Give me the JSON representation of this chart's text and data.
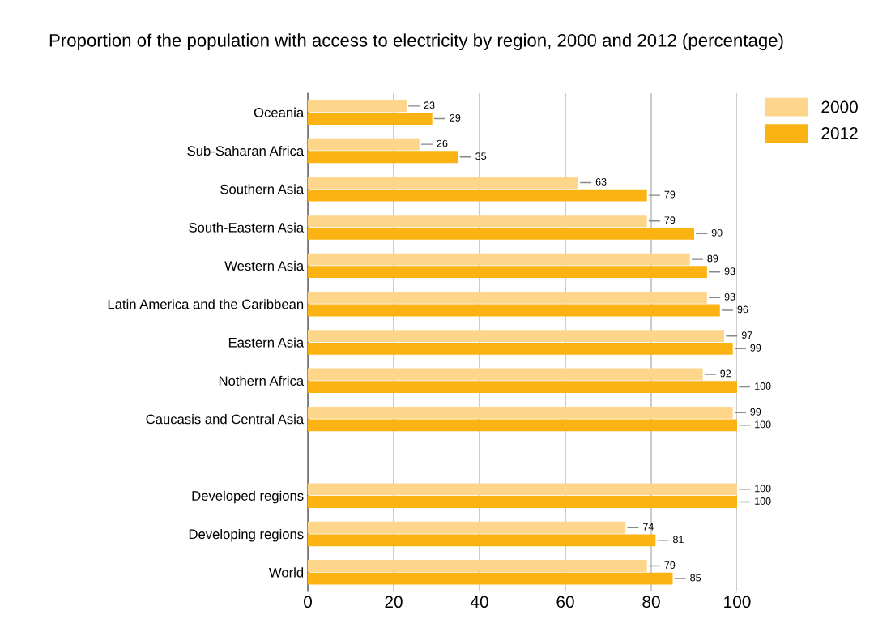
{
  "chart_data": {
    "type": "bar",
    "orientation": "horizontal",
    "title": "Proportion of the population with access to electricity by region, 2000 and 2012 (percentage)",
    "categories": [
      "Oceania",
      "Sub-Saharan Africa",
      "Southern Asia",
      "South-Eastern Asia",
      "Western Asia",
      "Latin America and the Caribbean",
      "Eastern Asia",
      "Nothern Africa",
      "Caucasis and Central Asia",
      null,
      "Developed regions",
      "Developing regions",
      "World"
    ],
    "series": [
      {
        "name": "2000",
        "color": "#fdd68c",
        "values": [
          23,
          26,
          63,
          79,
          89,
          93,
          97,
          92,
          99,
          null,
          100,
          74,
          79
        ]
      },
      {
        "name": "2012",
        "color": "#fbb314",
        "values": [
          29,
          35,
          79,
          90,
          93,
          96,
          99,
          100,
          100,
          null,
          100,
          81,
          85
        ]
      }
    ],
    "xlim": [
      0,
      100
    ],
    "xticks": [
      0,
      20,
      40,
      60,
      80,
      100
    ],
    "grid": "x",
    "legend": "top right",
    "data_labels": true
  }
}
